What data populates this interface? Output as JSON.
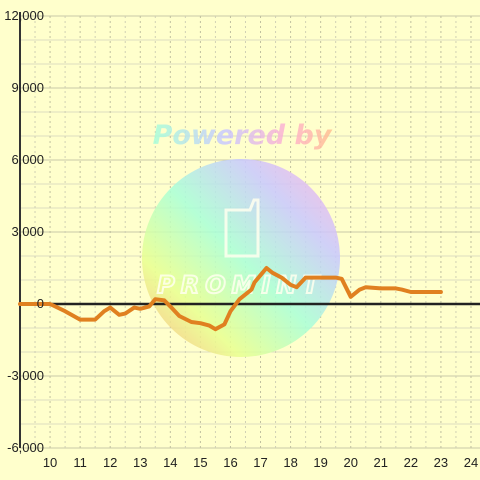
{
  "chart_data": {
    "type": "line",
    "title": "",
    "xlabel": "",
    "ylabel": "",
    "xlim": [
      9.0,
      24.3
    ],
    "ylim": [
      -6000,
      12000
    ],
    "grid": true,
    "x_ticks": [
      10,
      11,
      12,
      13,
      14,
      15,
      16,
      17,
      18,
      19,
      20,
      21,
      22,
      23,
      24
    ],
    "x_tick_labels": [
      "10",
      "11",
      "12",
      "13",
      "14",
      "15",
      "16",
      "17",
      "18",
      "19",
      "20",
      "21",
      "22",
      "23",
      "24"
    ],
    "y_ticks": [
      -6000,
      -3000,
      0,
      3000,
      6000,
      9000,
      12000
    ],
    "y_tick_labels": [
      "-6,000",
      "-3,000",
      "0",
      "3,000",
      "6,000",
      "9,000",
      "12,000"
    ],
    "series": [
      {
        "color": "#e08020",
        "x": [
          9.0,
          10.0,
          10.5,
          11.0,
          11.5,
          11.8,
          12.0,
          12.3,
          12.5,
          12.8,
          13.0,
          13.3,
          13.5,
          13.8,
          14.0,
          14.3,
          14.7,
          15.0,
          15.3,
          15.5,
          15.8,
          16.0,
          16.3,
          16.7,
          16.8,
          17.0,
          17.2,
          17.4,
          17.7,
          18.0,
          18.2,
          18.5,
          19.0,
          19.5,
          19.7,
          20.0,
          20.3,
          20.5,
          21.0,
          21.5,
          21.7,
          22.0,
          22.5,
          23.0
        ],
        "y": [
          0,
          0,
          -300,
          -650,
          -650,
          -300,
          -150,
          -450,
          -400,
          -150,
          -200,
          -100,
          200,
          150,
          -100,
          -500,
          -750,
          -800,
          -900,
          -1050,
          -850,
          -300,
          200,
          600,
          900,
          1200,
          1500,
          1300,
          1100,
          800,
          700,
          1100,
          1100,
          1100,
          1050,
          300,
          600,
          700,
          650,
          650,
          600,
          500,
          500,
          500
        ]
      }
    ],
    "watermark": {
      "text": "Powered by",
      "logo_text": "PROMINT"
    }
  }
}
